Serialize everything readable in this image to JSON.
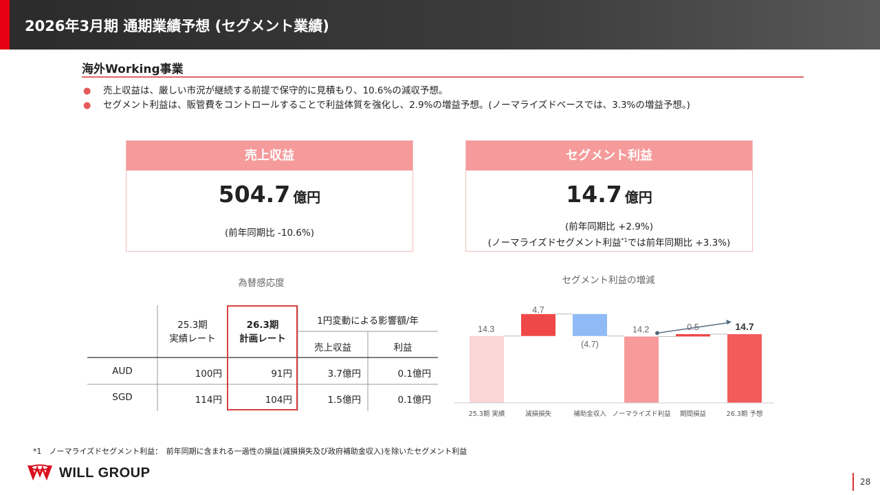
{
  "header": {
    "title": "2026年3月期 通期業績予想 (セグメント業績)"
  },
  "section": {
    "title": "海外Working事業"
  },
  "bullets": [
    "売上収益は、厳しい市況が継続する前提で保守的に見積もり、10.6%の減収予想。",
    "セグメント利益は、販管費をコントロールすることで利益体質を強化し、2.9%の増益予想。(ノーマライズドベースでは、3.3%の増益予想。)"
  ],
  "revenue_card": {
    "title": "売上収益",
    "value": "504.7",
    "unit": "億円",
    "note": "(前年同期比 -10.6%)"
  },
  "profit_card": {
    "title": "セグメント利益",
    "value": "14.7",
    "unit": "億円",
    "note1": "(前年同期比 +2.9%)",
    "note2_a": "(ノーマライズドセグメント利益",
    "note2_sup": "*1",
    "note2_b": "では前年同期比 +3.3%)"
  },
  "fx_table": {
    "title": "為替感応度",
    "col_prev_a": "25.3期",
    "col_prev_b": "実績レート",
    "col_plan_a": "26.3期",
    "col_plan_b": "計画レート",
    "col_impact": "1円変動による影響額/年",
    "col_rev": "売上収益",
    "col_profit": "利益",
    "rows": [
      {
        "currency": "AUD",
        "prev": "100円",
        "plan": "91円",
        "rev": "3.7億円",
        "profit": "0.1億円"
      },
      {
        "currency": "SGD",
        "prev": "114円",
        "plan": "104円",
        "rev": "1.5億円",
        "profit": "0.1億円"
      }
    ]
  },
  "chart_data": {
    "type": "bar",
    "subtype": "waterfall",
    "title": "セグメント利益の増減",
    "categories": [
      "25.3期 実績",
      "減損損失",
      "補助金収入",
      "ノーマライズド利益",
      "期間損益",
      "26.3期 予想"
    ],
    "values": [
      14.3,
      4.7,
      -4.7,
      14.2,
      0.5,
      14.7
    ],
    "labels": [
      "14.3",
      "4.7",
      "(4.7)",
      "14.2",
      "0.5",
      "14.7"
    ],
    "bar_kinds": [
      "total",
      "delta",
      "delta",
      "total",
      "delta",
      "total"
    ],
    "colors": [
      "#fad6d6",
      "#ef4848",
      "#8fbaf5",
      "#f89a9a",
      "#ef4848",
      "#f35b5b"
    ]
  },
  "footnote": "*1　ノーマライズドセグメント利益：　前年同期に含まれる一過性の損益(減損損失及び政府補助金収入)を除いたセグメント利益",
  "logo": {
    "text": "WILL GROUP"
  },
  "page_number": "28"
}
